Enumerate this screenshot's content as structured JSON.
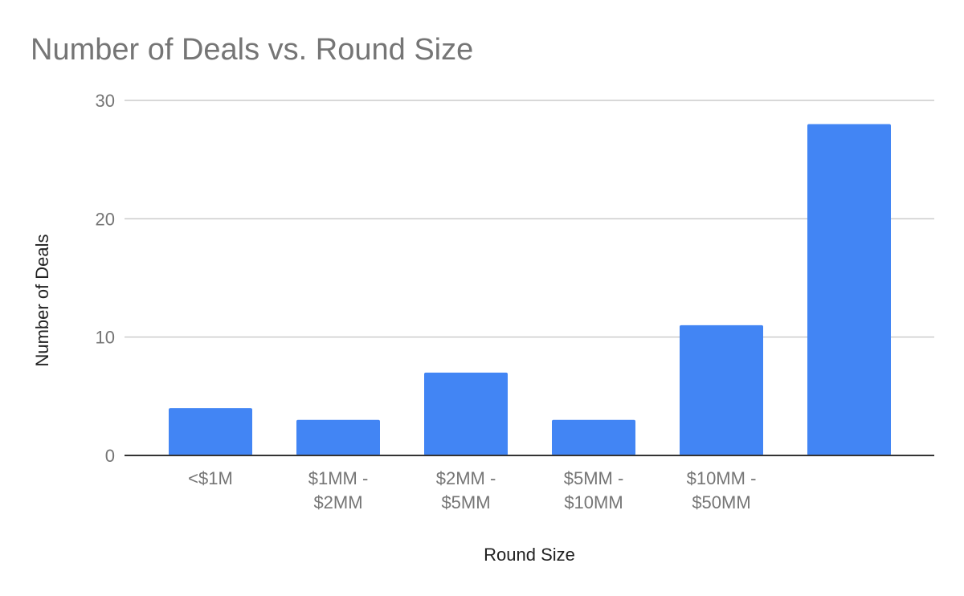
{
  "chart_data": {
    "type": "bar",
    "title": "Number of Deals vs. Round Size",
    "xlabel": "Round Size",
    "ylabel": "Number of Deals",
    "categories": [
      [
        "<$1M"
      ],
      [
        "$1MM -",
        "$2MM"
      ],
      [
        "$2MM -",
        "$5MM"
      ],
      [
        "$5MM -",
        "$10MM"
      ],
      [
        "$10MM -",
        "$50MM"
      ],
      []
    ],
    "values": [
      4,
      3,
      7,
      3,
      11,
      28
    ],
    "ylim": [
      0,
      30
    ],
    "yticks": [
      0,
      10,
      20,
      30
    ],
    "grid": true,
    "legend": "none",
    "colors": {
      "bar": "#4285f4"
    }
  }
}
